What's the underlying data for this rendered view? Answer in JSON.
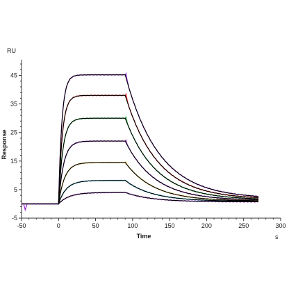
{
  "chart_data": {
    "type": "line",
    "title": "",
    "xlabel": "Time",
    "ylabel": "Response",
    "x_unit": "s",
    "y_unit": "RU",
    "xlim": [
      -50,
      300
    ],
    "ylim": [
      -5,
      50
    ],
    "x_ticks": [
      -50,
      0,
      50,
      100,
      150,
      200,
      250,
      300
    ],
    "y_ticks": [
      -5,
      5,
      15,
      25,
      35,
      45
    ],
    "grid": false,
    "legend": "none",
    "association_start_s": 0,
    "dissociation_start_s": 90,
    "data_end_s": 270,
    "baseline_spike": {
      "x": -45,
      "y": -2
    },
    "series": [
      {
        "color": "#9b2fd0",
        "values": {
          "plateau": 45.2,
          "end": 1.8
        }
      },
      {
        "color": "#e02020",
        "values": {
          "plateau": 38.0,
          "end": 1.6
        }
      },
      {
        "color": "#20b040",
        "values": {
          "plateau": 30.0,
          "end": 1.4
        }
      },
      {
        "color": "#9b2fd0",
        "values": {
          "plateau": 22.0,
          "end": 1.2
        }
      },
      {
        "color": "#d8b020",
        "values": {
          "plateau": 14.5,
          "end": 1.0
        }
      },
      {
        "color": "#20a0c0",
        "values": {
          "plateau": 8.2,
          "end": 0.9
        }
      },
      {
        "color": "#9b2fd0",
        "values": {
          "plateau": 4.0,
          "end": 0.7
        }
      }
    ],
    "fit_color": "#000000"
  }
}
